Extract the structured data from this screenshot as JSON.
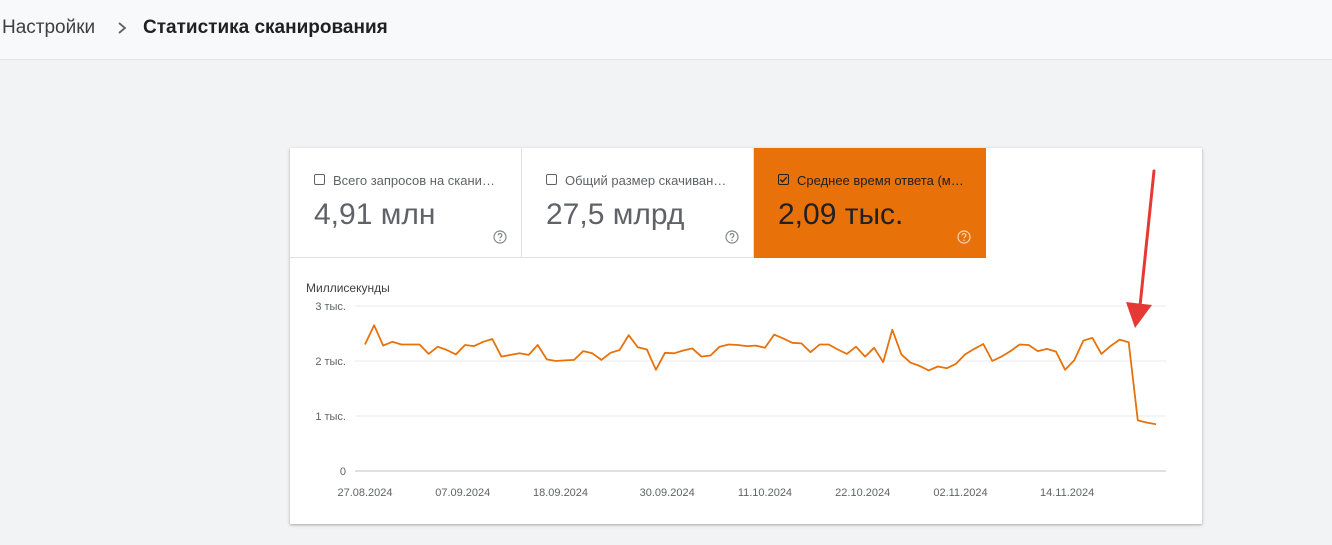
{
  "breadcrumb": {
    "root": "Настройки",
    "current": "Статистика сканирования"
  },
  "tiles": [
    {
      "label": "Всего запросов на скани…",
      "value": "4,91 млн",
      "checked": false
    },
    {
      "label": "Общий размер скачиван…",
      "value": "27,5 млрд",
      "checked": false
    },
    {
      "label": "Среднее время ответа (м…",
      "value": "2,09 тыс.",
      "checked": true
    }
  ],
  "colors": {
    "accent": "#e8710a",
    "annotation_arrow": "#e53935"
  },
  "chart_data": {
    "type": "line",
    "ylabel": "Миллисекунды",
    "yticks": [
      {
        "value": 0,
        "label": "0"
      },
      {
        "value": 1000,
        "label": "1 тыс."
      },
      {
        "value": 2000,
        "label": "2 тыс."
      },
      {
        "value": 3000,
        "label": "3 тыс."
      }
    ],
    "ylim": [
      0,
      3000
    ],
    "xticks": [
      "27.08.2024",
      "07.09.2024",
      "18.09.2024",
      "30.09.2024",
      "11.10.2024",
      "22.10.2024",
      "02.11.2024",
      "14.11.2024"
    ],
    "xrange": [
      "27.08.2024",
      "24.11.2024"
    ],
    "grid": true,
    "series": [
      {
        "color": "#e8710a",
        "values": [
          2300,
          2650,
          2280,
          2350,
          2300,
          2300,
          2300,
          2130,
          2260,
          2200,
          2120,
          2290,
          2270,
          2350,
          2400,
          2080,
          2110,
          2140,
          2110,
          2290,
          2030,
          2000,
          2010,
          2020,
          2180,
          2140,
          2020,
          2150,
          2200,
          2470,
          2250,
          2210,
          1840,
          2150,
          2140,
          2190,
          2230,
          2080,
          2100,
          2260,
          2300,
          2290,
          2270,
          2280,
          2240,
          2480,
          2410,
          2330,
          2320,
          2160,
          2300,
          2300,
          2210,
          2130,
          2260,
          2080,
          2240,
          1980,
          2570,
          2120,
          1970,
          1910,
          1830,
          1900,
          1870,
          1950,
          2120,
          2220,
          2310,
          2000,
          2080,
          2180,
          2300,
          2290,
          2180,
          2220,
          2170,
          1840,
          2010,
          2370,
          2420,
          2130,
          2270,
          2390,
          2340,
          920,
          880,
          850
        ]
      }
    ]
  }
}
